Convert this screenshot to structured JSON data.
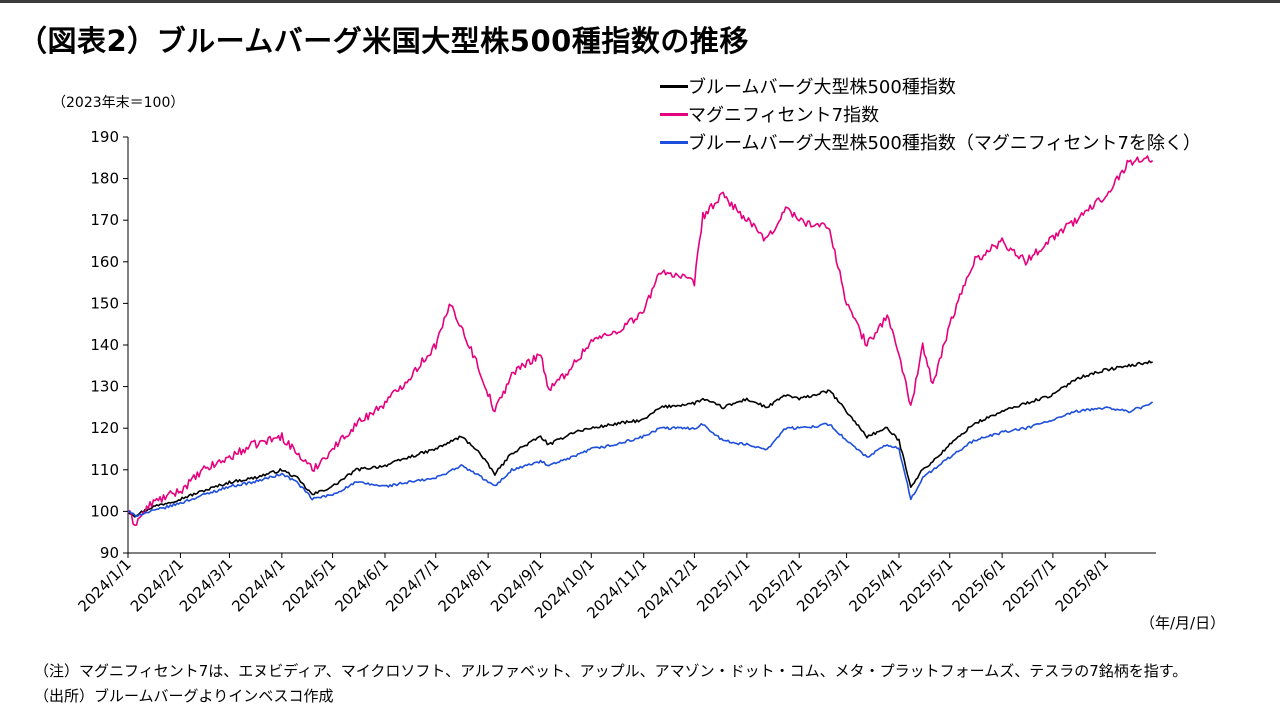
{
  "title": "（図表2）ブルームバーグ米国大型株500種指数の推移",
  "unit_label": "（2023年末＝100）",
  "date_unit_label": "（年/月/日）",
  "notes": [
    "（注）マグニフィセント7は、エヌビディア、マイクロソフト、アルファベット、アップル、アマゾン・ドット・コム、メタ・プラットフォームズ、テスラの7銘柄を指す。",
    "（出所）ブルームバーグよりインベスコ作成"
  ],
  "chart_data": {
    "type": "line",
    "title": "（図表2）ブルームバーグ米国大型株500種指数の推移",
    "ylabel": "（2023年末＝100）",
    "xlabel": "（年/月/日）",
    "ylim": [
      90,
      190
    ],
    "yticks": [
      90,
      100,
      110,
      120,
      130,
      140,
      150,
      160,
      170,
      180,
      190
    ],
    "x_range": [
      "2024-01-01",
      "2025-08-31"
    ],
    "xticks": [
      "2024/1/1",
      "2024/2/1",
      "2024/3/1",
      "2024/4/1",
      "2024/5/1",
      "2024/6/1",
      "2024/7/1",
      "2024/8/1",
      "2024/9/1",
      "2024/10/1",
      "2024/11/1",
      "2024/12/1",
      "2025/1/1",
      "2025/2/1",
      "2025/3/1",
      "2025/4/1",
      "2025/5/1",
      "2025/6/1",
      "2025/7/1",
      "2025/8/1"
    ],
    "grid": false,
    "legend_position": "top-right",
    "series": [
      {
        "name": "ブルームバーグ大型株500種指数",
        "color": "#000000",
        "x": [
          "2024-01-01",
          "2024-01-05",
          "2024-01-15",
          "2024-02-01",
          "2024-02-15",
          "2024-03-01",
          "2024-03-15",
          "2024-04-01",
          "2024-04-10",
          "2024-04-19",
          "2024-05-01",
          "2024-05-15",
          "2024-06-01",
          "2024-06-15",
          "2024-07-01",
          "2024-07-16",
          "2024-07-25",
          "2024-08-05",
          "2024-08-15",
          "2024-09-01",
          "2024-09-06",
          "2024-09-20",
          "2024-10-01",
          "2024-10-15",
          "2024-11-01",
          "2024-11-11",
          "2024-12-01",
          "2024-12-06",
          "2024-12-18",
          "2025-01-01",
          "2025-01-13",
          "2025-01-24",
          "2025-02-01",
          "2025-02-19",
          "2025-03-01",
          "2025-03-13",
          "2025-03-25",
          "2025-04-01",
          "2025-04-08",
          "2025-04-15",
          "2025-04-21",
          "2025-05-01",
          "2025-05-15",
          "2025-06-01",
          "2025-06-15",
          "2025-07-01",
          "2025-07-15",
          "2025-08-01",
          "2025-08-15",
          "2025-08-29"
        ],
        "values": [
          100,
          99,
          101,
          103,
          105,
          107,
          108,
          110,
          108,
          104,
          106,
          110,
          111,
          113,
          115,
          118,
          115,
          109,
          114,
          118,
          116,
          119,
          120,
          121,
          122,
          125,
          126,
          127,
          125,
          127,
          125,
          128,
          127,
          129,
          124,
          118,
          120,
          117,
          106,
          110,
          112,
          116,
          121,
          124,
          126,
          128,
          132,
          134,
          135,
          136
        ]
      },
      {
        "name": "マグニフィセント7指数",
        "color": "#e6007e",
        "x": [
          "2024-01-01",
          "2024-01-05",
          "2024-01-15",
          "2024-02-01",
          "2024-02-15",
          "2024-03-01",
          "2024-03-15",
          "2024-04-01",
          "2024-04-10",
          "2024-04-19",
          "2024-05-01",
          "2024-05-15",
          "2024-06-01",
          "2024-06-15",
          "2024-07-01",
          "2024-07-10",
          "2024-07-25",
          "2024-08-05",
          "2024-08-15",
          "2024-09-01",
          "2024-09-06",
          "2024-09-20",
          "2024-10-01",
          "2024-10-15",
          "2024-11-01",
          "2024-11-11",
          "2024-12-01",
          "2024-12-06",
          "2024-12-18",
          "2025-01-01",
          "2025-01-13",
          "2025-01-24",
          "2025-02-01",
          "2025-02-19",
          "2025-03-01",
          "2025-03-13",
          "2025-03-25",
          "2025-04-01",
          "2025-04-08",
          "2025-04-15",
          "2025-04-21",
          "2025-05-01",
          "2025-05-15",
          "2025-06-01",
          "2025-06-15",
          "2025-07-01",
          "2025-07-15",
          "2025-08-01",
          "2025-08-15",
          "2025-08-29"
        ],
        "values": [
          100,
          97,
          102,
          105,
          110,
          113,
          116,
          118,
          114,
          110,
          115,
          121,
          126,
          132,
          140,
          150,
          136,
          124,
          133,
          138,
          129,
          135,
          141,
          143,
          148,
          158,
          155,
          171,
          176,
          170,
          165,
          173,
          170,
          168,
          150,
          140,
          147,
          138,
          125,
          140,
          130,
          145,
          160,
          165,
          160,
          166,
          170,
          176,
          184,
          185
        ]
      },
      {
        "name": "ブルームバーグ大型株500種指数（マグニフィセント7を除く）",
        "color": "#1e4fdc",
        "x": [
          "2024-01-01",
          "2024-01-05",
          "2024-01-15",
          "2024-02-01",
          "2024-02-15",
          "2024-03-01",
          "2024-03-15",
          "2024-04-01",
          "2024-04-10",
          "2024-04-19",
          "2024-05-01",
          "2024-05-15",
          "2024-06-01",
          "2024-06-15",
          "2024-07-01",
          "2024-07-16",
          "2024-07-25",
          "2024-08-05",
          "2024-08-15",
          "2024-09-01",
          "2024-09-06",
          "2024-09-20",
          "2024-10-01",
          "2024-10-15",
          "2024-11-01",
          "2024-11-11",
          "2024-12-01",
          "2024-12-06",
          "2024-12-18",
          "2025-01-01",
          "2025-01-13",
          "2025-01-24",
          "2025-02-01",
          "2025-02-19",
          "2025-03-01",
          "2025-03-13",
          "2025-03-25",
          "2025-04-01",
          "2025-04-08",
          "2025-04-15",
          "2025-04-21",
          "2025-05-01",
          "2025-05-15",
          "2025-06-01",
          "2025-06-15",
          "2025-07-01",
          "2025-07-15",
          "2025-08-01",
          "2025-08-15",
          "2025-08-29"
        ],
        "values": [
          100,
          99,
          100,
          102,
          104,
          106,
          107,
          109,
          107,
          103,
          104,
          107,
          106,
          107,
          108,
          111,
          109,
          106,
          110,
          112,
          111,
          113,
          115,
          116,
          118,
          120,
          120,
          121,
          117,
          116,
          115,
          120,
          120,
          121,
          117,
          113,
          116,
          115,
          103,
          108,
          110,
          113,
          117,
          119,
          120,
          122,
          124,
          125,
          124,
          126
        ]
      }
    ]
  }
}
